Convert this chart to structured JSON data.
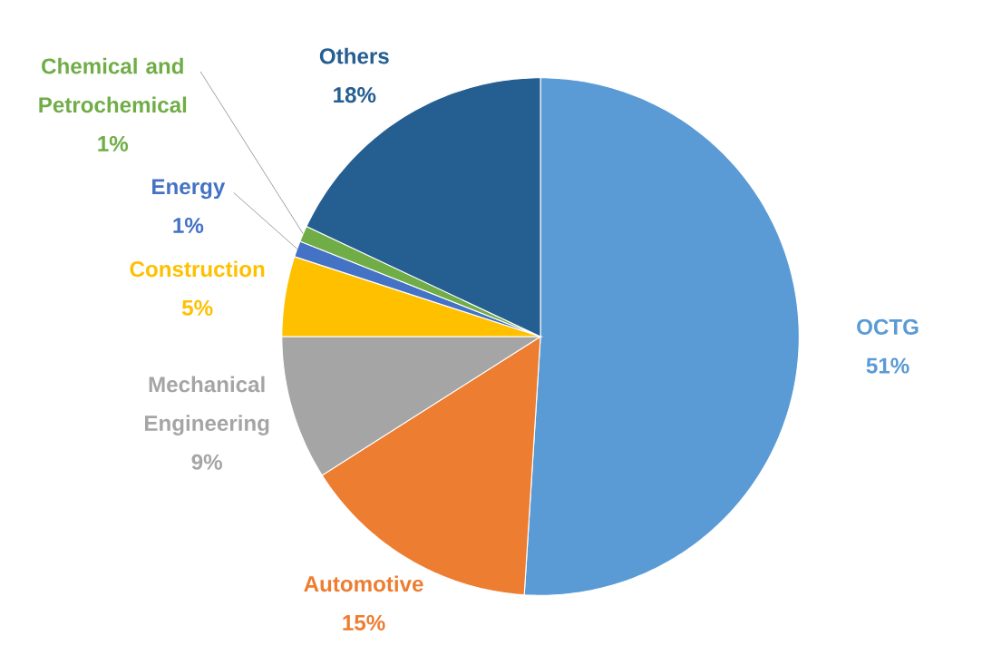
{
  "chart_data": {
    "type": "pie",
    "categories": [
      "OCTG",
      "Automotive",
      "Mechanical Engineering",
      "Construction",
      "Energy",
      "Chemical and Petrochemical",
      "Others"
    ],
    "values": [
      51,
      15,
      9,
      5,
      1,
      1,
      18
    ],
    "value_labels": [
      "51%",
      "15%",
      "9%",
      "5%",
      "1%",
      "1%",
      "18%"
    ],
    "colors": [
      "#5b9bd5",
      "#ed7d31",
      "#a5a5a5",
      "#ffc000",
      "#4472c4",
      "#70ad47",
      "#255e91"
    ]
  }
}
